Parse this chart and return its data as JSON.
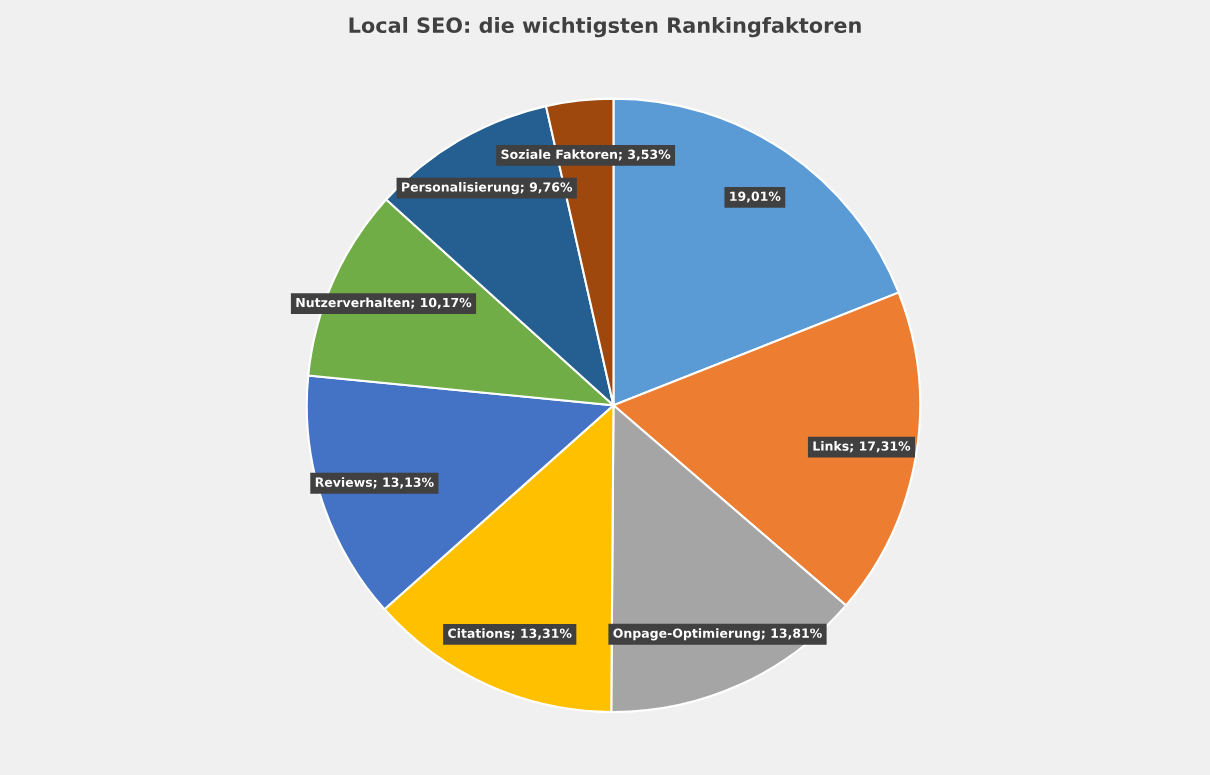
{
  "chart_data": {
    "type": "pie",
    "title": "Local SEO: die wichtigsten Rankingfaktoren",
    "categories": [
      null,
      "Links",
      "Onpage-Optimierung",
      "Citations",
      "Reviews",
      "Nutzerverhalten",
      "Personalisierung",
      "Soziale Faktoren"
    ],
    "values": [
      19.01,
      17.31,
      13.81,
      13.31,
      13.13,
      10.17,
      9.76,
      3.53
    ],
    "colors": [
      "#5b9bd5",
      "#ed7d31",
      "#a5a5a5",
      "#ffc000",
      "#4472c4",
      "#70ad47",
      "#255e91",
      "#9e480e"
    ],
    "value_labels": [
      "19,01%",
      "17,31%",
      "13,81%",
      "13,31%",
      "13,13%",
      "10,17%",
      "9,76%",
      "3,53%"
    ],
    "legend": false
  }
}
